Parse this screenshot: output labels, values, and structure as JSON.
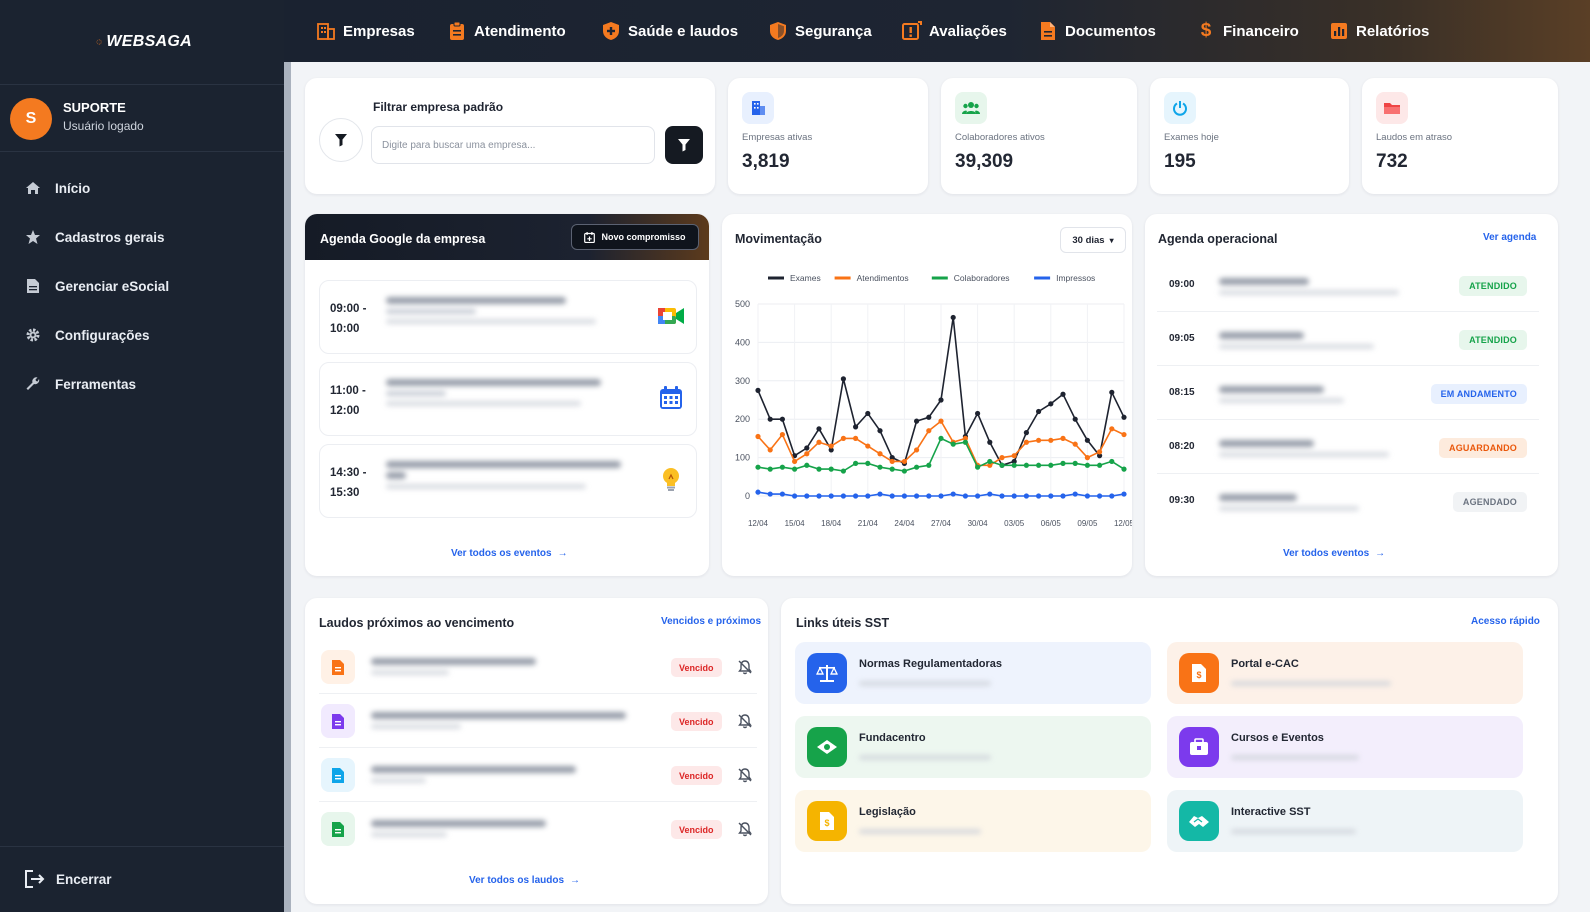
{
  "brand": {
    "name": "WEBSAGA"
  },
  "user": {
    "initial": "S",
    "name": "SUPORTE",
    "role": "Usuário logado"
  },
  "sidebar": {
    "items": [
      {
        "label": "Início",
        "icon": "home-icon"
      },
      {
        "label": "Cadastros gerais",
        "icon": "star-icon"
      },
      {
        "label": "Gerenciar eSocial",
        "icon": "document-icon"
      },
      {
        "label": "Configurações",
        "icon": "gear-icon"
      },
      {
        "label": "Ferramentas",
        "icon": "wrench-icon"
      }
    ],
    "logout": "Encerrar"
  },
  "topnav": [
    {
      "label": "Empresas",
      "icon": "building-icon"
    },
    {
      "label": "Atendimento",
      "icon": "clipboard-icon"
    },
    {
      "label": "Saúde e laudos",
      "icon": "medical-shield-icon"
    },
    {
      "label": "Segurança",
      "icon": "shield-icon"
    },
    {
      "label": "Avaliações",
      "icon": "alert-report-icon"
    },
    {
      "label": "Documentos",
      "icon": "file-icon"
    },
    {
      "label": "Financeiro",
      "icon": "dollar-icon"
    },
    {
      "label": "Relatórios",
      "icon": "bar-chart-icon"
    }
  ],
  "filter": {
    "title": "Filtrar empresa padrão",
    "placeholder": "Digite para buscar uma empresa..."
  },
  "stats": [
    {
      "label": "Empresas ativas",
      "value": "3,819",
      "icon": "building-icon",
      "color": "#2563eb"
    },
    {
      "label": "Colaboradores ativos",
      "value": "39,309",
      "icon": "users-icon",
      "color": "#16a34a"
    },
    {
      "label": "Exames hoje",
      "value": "195",
      "icon": "power-icon",
      "color": "#0ea5e9"
    },
    {
      "label": "Laudos em atraso",
      "value": "732",
      "icon": "folder-icon",
      "color": "#ef4444"
    }
  ],
  "agenda_google": {
    "title": "Agenda Google da empresa",
    "new_button": "Novo compromisso",
    "events": [
      {
        "start": "09:00 -",
        "end": "10:00",
        "icon": "google-meet-icon"
      },
      {
        "start": "11:00 -",
        "end": "12:00",
        "icon": "calendar-icon"
      },
      {
        "start": "14:30 -",
        "end": "15:30",
        "icon": "lightbulb-icon"
      }
    ],
    "view_all": "Ver todos os eventos"
  },
  "movimentacao": {
    "title": "Movimentação",
    "period": "30 dias"
  },
  "chart_data": {
    "type": "line",
    "x": [
      "12/04",
      "13/04",
      "14/04",
      "15/04",
      "16/04",
      "17/04",
      "18/04",
      "19/04",
      "20/04",
      "21/04",
      "22/04",
      "23/04",
      "24/04",
      "25/04",
      "26/04",
      "27/04",
      "28/04",
      "29/04",
      "30/04",
      "01/05",
      "02/05",
      "03/05",
      "04/05",
      "05/05",
      "06/05",
      "07/05",
      "08/05",
      "09/05",
      "10/05",
      "11/05",
      "12/05"
    ],
    "xticks": [
      "12/04",
      "15/04",
      "18/04",
      "21/04",
      "24/04",
      "27/04",
      "30/04",
      "03/05",
      "06/05",
      "09/05",
      "12/05"
    ],
    "yticks": [
      0,
      100,
      200,
      300,
      400,
      500
    ],
    "ylim": [
      0,
      500
    ],
    "legend_position": "top",
    "grid": true,
    "series": [
      {
        "name": "Exames",
        "color": "#1e2330",
        "values": [
          275,
          200,
          200,
          105,
          125,
          175,
          120,
          305,
          180,
          215,
          170,
          100,
          85,
          195,
          205,
          250,
          465,
          155,
          215,
          140,
          80,
          90,
          165,
          220,
          240,
          265,
          200,
          145,
          105,
          270,
          205
        ]
      },
      {
        "name": "Atendimentos",
        "color": "#f97316",
        "values": [
          155,
          120,
          160,
          90,
          110,
          140,
          130,
          150,
          150,
          130,
          110,
          90,
          90,
          120,
          170,
          195,
          140,
          150,
          80,
          80,
          100,
          105,
          140,
          145,
          145,
          150,
          135,
          100,
          115,
          175,
          160
        ]
      },
      {
        "name": "Colaboradores",
        "color": "#16a34a",
        "values": [
          75,
          70,
          75,
          70,
          80,
          70,
          70,
          65,
          85,
          85,
          75,
          70,
          65,
          75,
          80,
          150,
          135,
          140,
          75,
          90,
          80,
          80,
          80,
          80,
          80,
          85,
          85,
          80,
          80,
          90,
          70
        ]
      },
      {
        "name": "Impressos",
        "color": "#2563eb",
        "values": [
          10,
          5,
          5,
          0,
          0,
          0,
          0,
          0,
          0,
          0,
          5,
          0,
          0,
          0,
          0,
          0,
          5,
          0,
          0,
          5,
          0,
          0,
          0,
          0,
          0,
          0,
          5,
          0,
          0,
          0,
          5
        ]
      }
    ]
  },
  "agenda_operacional": {
    "title": "Agenda operacional",
    "link": "Ver agenda",
    "items": [
      {
        "time": "09:00",
        "status": "ATENDIDO",
        "kind": "ok"
      },
      {
        "time": "09:05",
        "status": "ATENDIDO",
        "kind": "ok"
      },
      {
        "time": "08:15",
        "status": "EM ANDAMENTO",
        "kind": "progress"
      },
      {
        "time": "08:20",
        "status": "AGUARDANDO",
        "kind": "wait"
      },
      {
        "time": "09:30",
        "status": "AGENDADO",
        "kind": "sched"
      }
    ],
    "view_all": "Ver todos eventos"
  },
  "laudos": {
    "title": "Laudos próximos ao vencimento",
    "link": "Vencidos e próximos",
    "items": [
      {
        "status": "Vencido",
        "color": "#f97316",
        "bg": "#fff1e6"
      },
      {
        "status": "Vencido",
        "color": "#7c3aed",
        "bg": "#f1eafe"
      },
      {
        "status": "Vencido",
        "color": "#0ea5e9",
        "bg": "#e6f5fd"
      },
      {
        "status": "Vencido",
        "color": "#16a34a",
        "bg": "#e7f6ec"
      }
    ],
    "view_all": "Ver todos os laudos"
  },
  "links": {
    "title": "Links úteis SST",
    "link": "Acesso rápido",
    "items": [
      {
        "label": "Normas Regulamentadoras",
        "icon": "scale-icon",
        "color": "#2563eb",
        "bg": "#eef3fd"
      },
      {
        "label": "Portal e-CAC",
        "icon": "document-dollar-icon",
        "color": "#f97316",
        "bg": "#fdf1e8"
      },
      {
        "label": "Fundacentro",
        "icon": "eye-icon",
        "color": "#16a34a",
        "bg": "#edf7f0"
      },
      {
        "label": "Cursos e Eventos",
        "icon": "briefcase-icon",
        "color": "#7c3aed",
        "bg": "#f3eefc"
      },
      {
        "label": "Legislação",
        "icon": "document-icon",
        "color": "#f5b400",
        "bg": "#fdf6e9"
      },
      {
        "label": "Interactive SST",
        "icon": "handshake-icon",
        "color": "#14b8a6",
        "bg": "#eef4f7"
      }
    ]
  }
}
